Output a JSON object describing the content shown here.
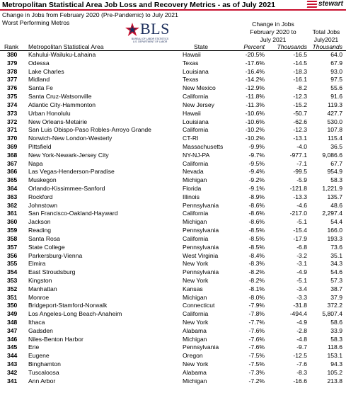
{
  "header": {
    "title": "Metropolitan Statistical Area Job Loss and Recovery Metrics - as of July 2021",
    "brand": "stewart",
    "subtitle": "Change in Jobs from February 2020 (Pre-Pandemic) to July 2021",
    "section": "Worst Performing Metros"
  },
  "logo": {
    "text": "BLS",
    "tagline_1": "BUREAU OF LABOR STATISTICS",
    "tagline_2": "U.S. DEPARTMENT OF LABOR"
  },
  "columns": {
    "change_group": [
      "Change in Jobs",
      "February 2020 to",
      "July 2021"
    ],
    "total_group": [
      "Total Jobs",
      "July2021"
    ],
    "rank": "Rank",
    "metro": "Metropolitan Statistical Area",
    "state": "State",
    "percent": "Percent",
    "thousands": "Thousands",
    "total_thousands": "Thousands"
  },
  "rows": [
    {
      "rank": "380",
      "metro": "Kahului-Wailuku-Lahaina",
      "state": "Hawaii",
      "pct": "-20.5%",
      "thou": "-16.5",
      "total": "64.0"
    },
    {
      "rank": "379",
      "metro": "Odessa",
      "state": "Texas",
      "pct": "-17.6%",
      "thou": "-14.5",
      "total": "67.9"
    },
    {
      "rank": "378",
      "metro": "Lake Charles",
      "state": "Louisiana",
      "pct": "-16.4%",
      "thou": "-18.3",
      "total": "93.0"
    },
    {
      "rank": "377",
      "metro": "Midland",
      "state": "Texas",
      "pct": "-14.2%",
      "thou": "-16.1",
      "total": "97.5"
    },
    {
      "rank": "376",
      "metro": "Santa Fe",
      "state": "New Mexico",
      "pct": "-12.9%",
      "thou": "-8.2",
      "total": "55.6"
    },
    {
      "rank": "375",
      "metro": "Santa Cruz-Watsonville",
      "state": "California",
      "pct": "-11.8%",
      "thou": "-12.3",
      "total": "91.6"
    },
    {
      "rank": "374",
      "metro": "Atlantic City-Hammonton",
      "state": "New Jersey",
      "pct": "-11.3%",
      "thou": "-15.2",
      "total": "119.3"
    },
    {
      "rank": "373",
      "metro": "Urban Honolulu",
      "state": "Hawaii",
      "pct": "-10.6%",
      "thou": "-50.7",
      "total": "427.7"
    },
    {
      "rank": "372",
      "metro": "New Orleans-Metairie",
      "state": "Louisiana",
      "pct": "-10.6%",
      "thou": "-62.6",
      "total": "530.0"
    },
    {
      "rank": "371",
      "metro": "San Luis Obispo-Paso Robles-Arroyo Grande",
      "state": "California",
      "pct": "-10.2%",
      "thou": "-12.3",
      "total": "107.8"
    },
    {
      "rank": "370",
      "metro": "Norwich-New London-Westerly",
      "state": "CT-RI",
      "pct": "-10.2%",
      "thou": "-13.1",
      "total": "115.4"
    },
    {
      "rank": "369",
      "metro": "Pittsfield",
      "state": "Massachusetts",
      "pct": "-9.9%",
      "thou": "-4.0",
      "total": "36.5"
    },
    {
      "rank": "368",
      "metro": "New York-Newark-Jersey City",
      "state": "NY-NJ-PA",
      "pct": "-9.7%",
      "thou": "-977.1",
      "total": "9,086.6"
    },
    {
      "rank": "367",
      "metro": "Napa",
      "state": "California",
      "pct": "-9.5%",
      "thou": "-7.1",
      "total": "67.7"
    },
    {
      "rank": "366",
      "metro": "Las Vegas-Henderson-Paradise",
      "state": "Nevada",
      "pct": "-9.4%",
      "thou": "-99.5",
      "total": "954.9"
    },
    {
      "rank": "365",
      "metro": "Muskegon",
      "state": "Michigan",
      "pct": "-9.2%",
      "thou": "-5.9",
      "total": "58.3"
    },
    {
      "rank": "364",
      "metro": "Orlando-Kissimmee-Sanford",
      "state": "Florida",
      "pct": "-9.1%",
      "thou": "-121.8",
      "total": "1,221.9"
    },
    {
      "rank": "363",
      "metro": "Rockford",
      "state": "Illinois",
      "pct": "-8.9%",
      "thou": "-13.3",
      "total": "135.7"
    },
    {
      "rank": "362",
      "metro": "Johnstown",
      "state": "Pennsylvania",
      "pct": "-8.6%",
      "thou": "-4.6",
      "total": "48.6"
    },
    {
      "rank": "361",
      "metro": "San Francisco-Oakland-Hayward",
      "state": "California",
      "pct": "-8.6%",
      "thou": "-217.0",
      "total": "2,297.4"
    },
    {
      "rank": "360",
      "metro": "Jackson",
      "state": "Michigan",
      "pct": "-8.6%",
      "thou": "-5.1",
      "total": "54.4"
    },
    {
      "rank": "359",
      "metro": "Reading",
      "state": "Pennsylvania",
      "pct": "-8.5%",
      "thou": "-15.4",
      "total": "166.0"
    },
    {
      "rank": "358",
      "metro": "Santa Rosa",
      "state": "California",
      "pct": "-8.5%",
      "thou": "-17.9",
      "total": "193.3"
    },
    {
      "rank": "357",
      "metro": "State College",
      "state": "Pennsylvania",
      "pct": "-8.5%",
      "thou": "-6.8",
      "total": "73.6"
    },
    {
      "rank": "356",
      "metro": "Parkersburg-Vienna",
      "state": "West Virginia",
      "pct": "-8.4%",
      "thou": "-3.2",
      "total": "35.1"
    },
    {
      "rank": "355",
      "metro": "Elmira",
      "state": "New York",
      "pct": "-8.3%",
      "thou": "-3.1",
      "total": "34.3"
    },
    {
      "rank": "354",
      "metro": "East Stroudsburg",
      "state": "Pennsylvania",
      "pct": "-8.2%",
      "thou": "-4.9",
      "total": "54.6"
    },
    {
      "rank": "353",
      "metro": "Kingston",
      "state": "New York",
      "pct": "-8.2%",
      "thou": "-5.1",
      "total": "57.3"
    },
    {
      "rank": "352",
      "metro": "Manhattan",
      "state": "Kansas",
      "pct": "-8.1%",
      "thou": "-3.4",
      "total": "38.7"
    },
    {
      "rank": "351",
      "metro": "Monroe",
      "state": "Michigan",
      "pct": "-8.0%",
      "thou": "-3.3",
      "total": "37.9"
    },
    {
      "rank": "350",
      "metro": "Bridgeport-Stamford-Norwalk",
      "state": "Connecticut",
      "pct": "-7.9%",
      "thou": "-31.8",
      "total": "372.2"
    },
    {
      "rank": "349",
      "metro": "Los Angeles-Long Beach-Anaheim",
      "state": "California",
      "pct": "-7.8%",
      "thou": "-494.4",
      "total": "5,807.4"
    },
    {
      "rank": "348",
      "metro": "Ithaca",
      "state": "New York",
      "pct": "-7.7%",
      "thou": "-4.9",
      "total": "58.6"
    },
    {
      "rank": "347",
      "metro": "Gadsden",
      "state": "Alabama",
      "pct": "-7.6%",
      "thou": "-2.8",
      "total": "33.9"
    },
    {
      "rank": "346",
      "metro": "Niles-Benton Harbor",
      "state": "Michigan",
      "pct": "-7.6%",
      "thou": "-4.8",
      "total": "58.3"
    },
    {
      "rank": "345",
      "metro": "Erie",
      "state": "Pennsylvania",
      "pct": "-7.6%",
      "thou": "-9.7",
      "total": "118.6"
    },
    {
      "rank": "344",
      "metro": "Eugene",
      "state": "Oregon",
      "pct": "-7.5%",
      "thou": "-12.5",
      "total": "153.1"
    },
    {
      "rank": "343",
      "metro": "Binghamton",
      "state": "New York",
      "pct": "-7.5%",
      "thou": "-7.6",
      "total": "94.3"
    },
    {
      "rank": "342",
      "metro": "Tuscaloosa",
      "state": "Alabama",
      "pct": "-7.3%",
      "thou": "-8.3",
      "total": "105.2"
    },
    {
      "rank": "341",
      "metro": "Ann Arbor",
      "state": "Michigan",
      "pct": "-7.2%",
      "thou": "-16.6",
      "total": "213.8"
    }
  ]
}
